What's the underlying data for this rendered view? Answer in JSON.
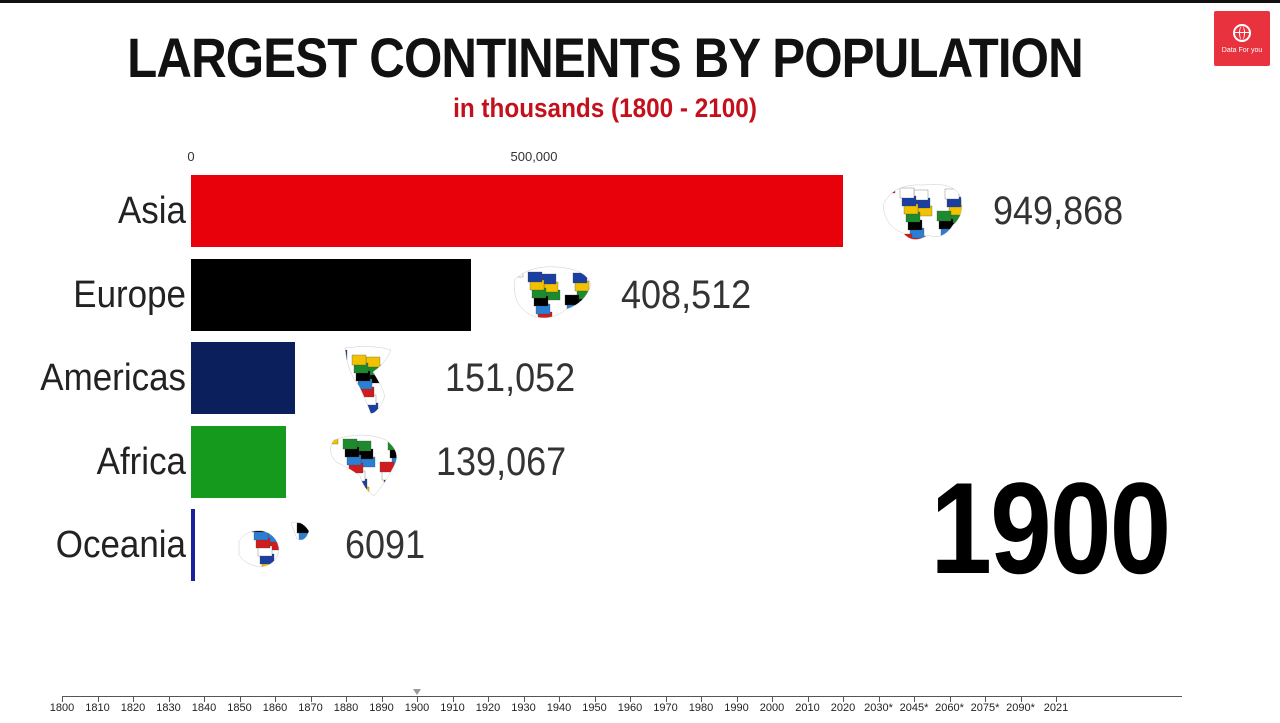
{
  "logo": {
    "text": "Data For you"
  },
  "chart_data": {
    "type": "bar",
    "orientation": "horizontal",
    "title": "LARGEST CONTINENTS BY POPULATION",
    "subtitle": "in thousands (1800 - 2100)",
    "xlim": [
      0,
      1000000
    ],
    "x_ticks": [
      0,
      500000
    ],
    "x_tick_labels": [
      "0",
      "500,000"
    ],
    "categories": [
      "Asia",
      "Europe",
      "Americas",
      "Africa",
      "Oceania"
    ],
    "values": [
      949868,
      408512,
      151052,
      139067,
      6091
    ],
    "value_labels": [
      "949,868",
      "408,512",
      "151,052",
      "139,067",
      "6091"
    ],
    "colors": [
      "#e8000b",
      "#000000",
      "#0b1f5c",
      "#159a1e",
      "#1b1f9e"
    ],
    "icons": [
      "asia-flag-map-icon",
      "europe-flag-map-icon",
      "americas-flag-map-icon",
      "africa-flag-map-icon",
      "oceania-flag-map-icon"
    ],
    "year": "1900",
    "timeline": {
      "labels": [
        "1800",
        "1810",
        "1820",
        "1830",
        "1840",
        "1850",
        "1860",
        "1870",
        "1880",
        "1890",
        "1900",
        "1910",
        "1920",
        "1930",
        "1940",
        "1950",
        "1960",
        "1970",
        "1980",
        "1990",
        "2000",
        "2010",
        "2020",
        "2030*",
        "2045*",
        "2060*",
        "2075*",
        "2090*",
        "2021"
      ],
      "current": "1900"
    }
  }
}
